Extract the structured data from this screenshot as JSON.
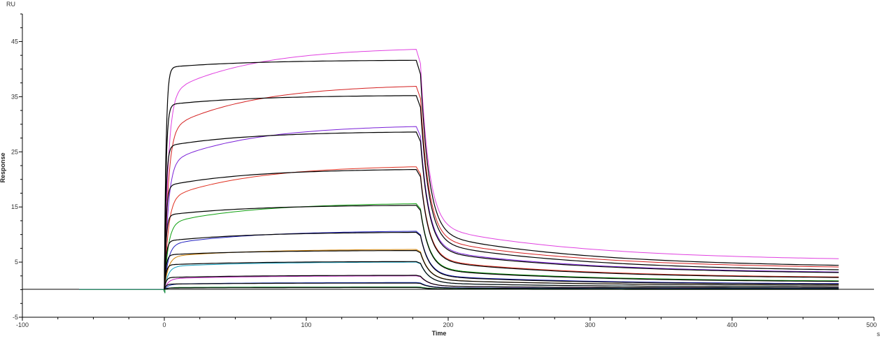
{
  "chart_data": {
    "type": "line",
    "title": "",
    "xlabel": "Time",
    "ylabel": "Response",
    "x_unit": "s",
    "y_unit": "RU",
    "xlim": [
      -100,
      500
    ],
    "ylim": [
      -5,
      50
    ],
    "x_ticks": [
      -100,
      0,
      100,
      200,
      300,
      400,
      500
    ],
    "y_ticks": [
      -5,
      5,
      15,
      25,
      35,
      45
    ],
    "grid": false,
    "legend": "none",
    "baseline_start": -60,
    "association_start": 0,
    "dissociation_start": 180,
    "end": 480,
    "series": [
      {
        "color": "#e040e0",
        "assoc_fast": 35.5,
        "assoc_end": 43.6,
        "diss_end": 5.6
      },
      {
        "color": "#000000",
        "assoc_fast": 40.3,
        "assoc_end": 41.6,
        "diss_end": 4.4
      },
      {
        "color": "#d42020",
        "assoc_fast": 29.0,
        "assoc_end": 36.9,
        "diss_end": 4.1
      },
      {
        "color": "#000000",
        "assoc_fast": 33.5,
        "assoc_end": 35.2,
        "diss_end": 3.6
      },
      {
        "color": "#7a20d8",
        "assoc_fast": 23.0,
        "assoc_end": 29.6,
        "diss_end": 3.2
      },
      {
        "color": "#000000",
        "assoc_fast": 26.0,
        "assoc_end": 28.6,
        "diss_end": 3.1
      },
      {
        "color": "#e03020",
        "assoc_fast": 16.5,
        "assoc_end": 22.3,
        "diss_end": 2.3
      },
      {
        "color": "#000000",
        "assoc_fast": 18.8,
        "assoc_end": 21.8,
        "diss_end": 2.2
      },
      {
        "color": "#10a010",
        "assoc_fast": 12.0,
        "assoc_end": 15.6,
        "diss_end": 1.6
      },
      {
        "color": "#000000",
        "assoc_fast": 13.5,
        "assoc_end": 15.3,
        "diss_end": 1.5
      },
      {
        "color": "#2020c0",
        "assoc_fast": 8.2,
        "assoc_end": 10.6,
        "diss_end": 1.1
      },
      {
        "color": "#000000",
        "assoc_fast": 8.8,
        "assoc_end": 10.4,
        "diss_end": 1.0
      },
      {
        "color": "#d08000",
        "assoc_fast": 6.0,
        "assoc_end": 7.3,
        "diss_end": 0.8
      },
      {
        "color": "#000000",
        "assoc_fast": 6.3,
        "assoc_end": 7.1,
        "diss_end": 0.8
      },
      {
        "color": "#10a0c0",
        "assoc_fast": 4.2,
        "assoc_end": 5.0,
        "diss_end": 0.5
      },
      {
        "color": "#000000",
        "assoc_fast": 4.5,
        "assoc_end": 5.1,
        "diss_end": 0.5
      },
      {
        "color": "#c020c0",
        "assoc_fast": 2.0,
        "assoc_end": 2.5,
        "diss_end": 0.3
      },
      {
        "color": "#000000",
        "assoc_fast": 2.2,
        "assoc_end": 2.6,
        "diss_end": 0.3
      },
      {
        "color": "#2040d0",
        "assoc_fast": 1.0,
        "assoc_end": 1.3,
        "diss_end": 0.2
      },
      {
        "color": "#000000",
        "assoc_fast": 1.0,
        "assoc_end": 1.2,
        "diss_end": 0.15
      },
      {
        "color": "#20a040",
        "assoc_fast": 0.4,
        "assoc_end": 0.5,
        "diss_end": 0.1
      },
      {
        "color": "#000000",
        "assoc_fast": 0.3,
        "assoc_end": 0.4,
        "diss_end": 0.05
      }
    ]
  }
}
